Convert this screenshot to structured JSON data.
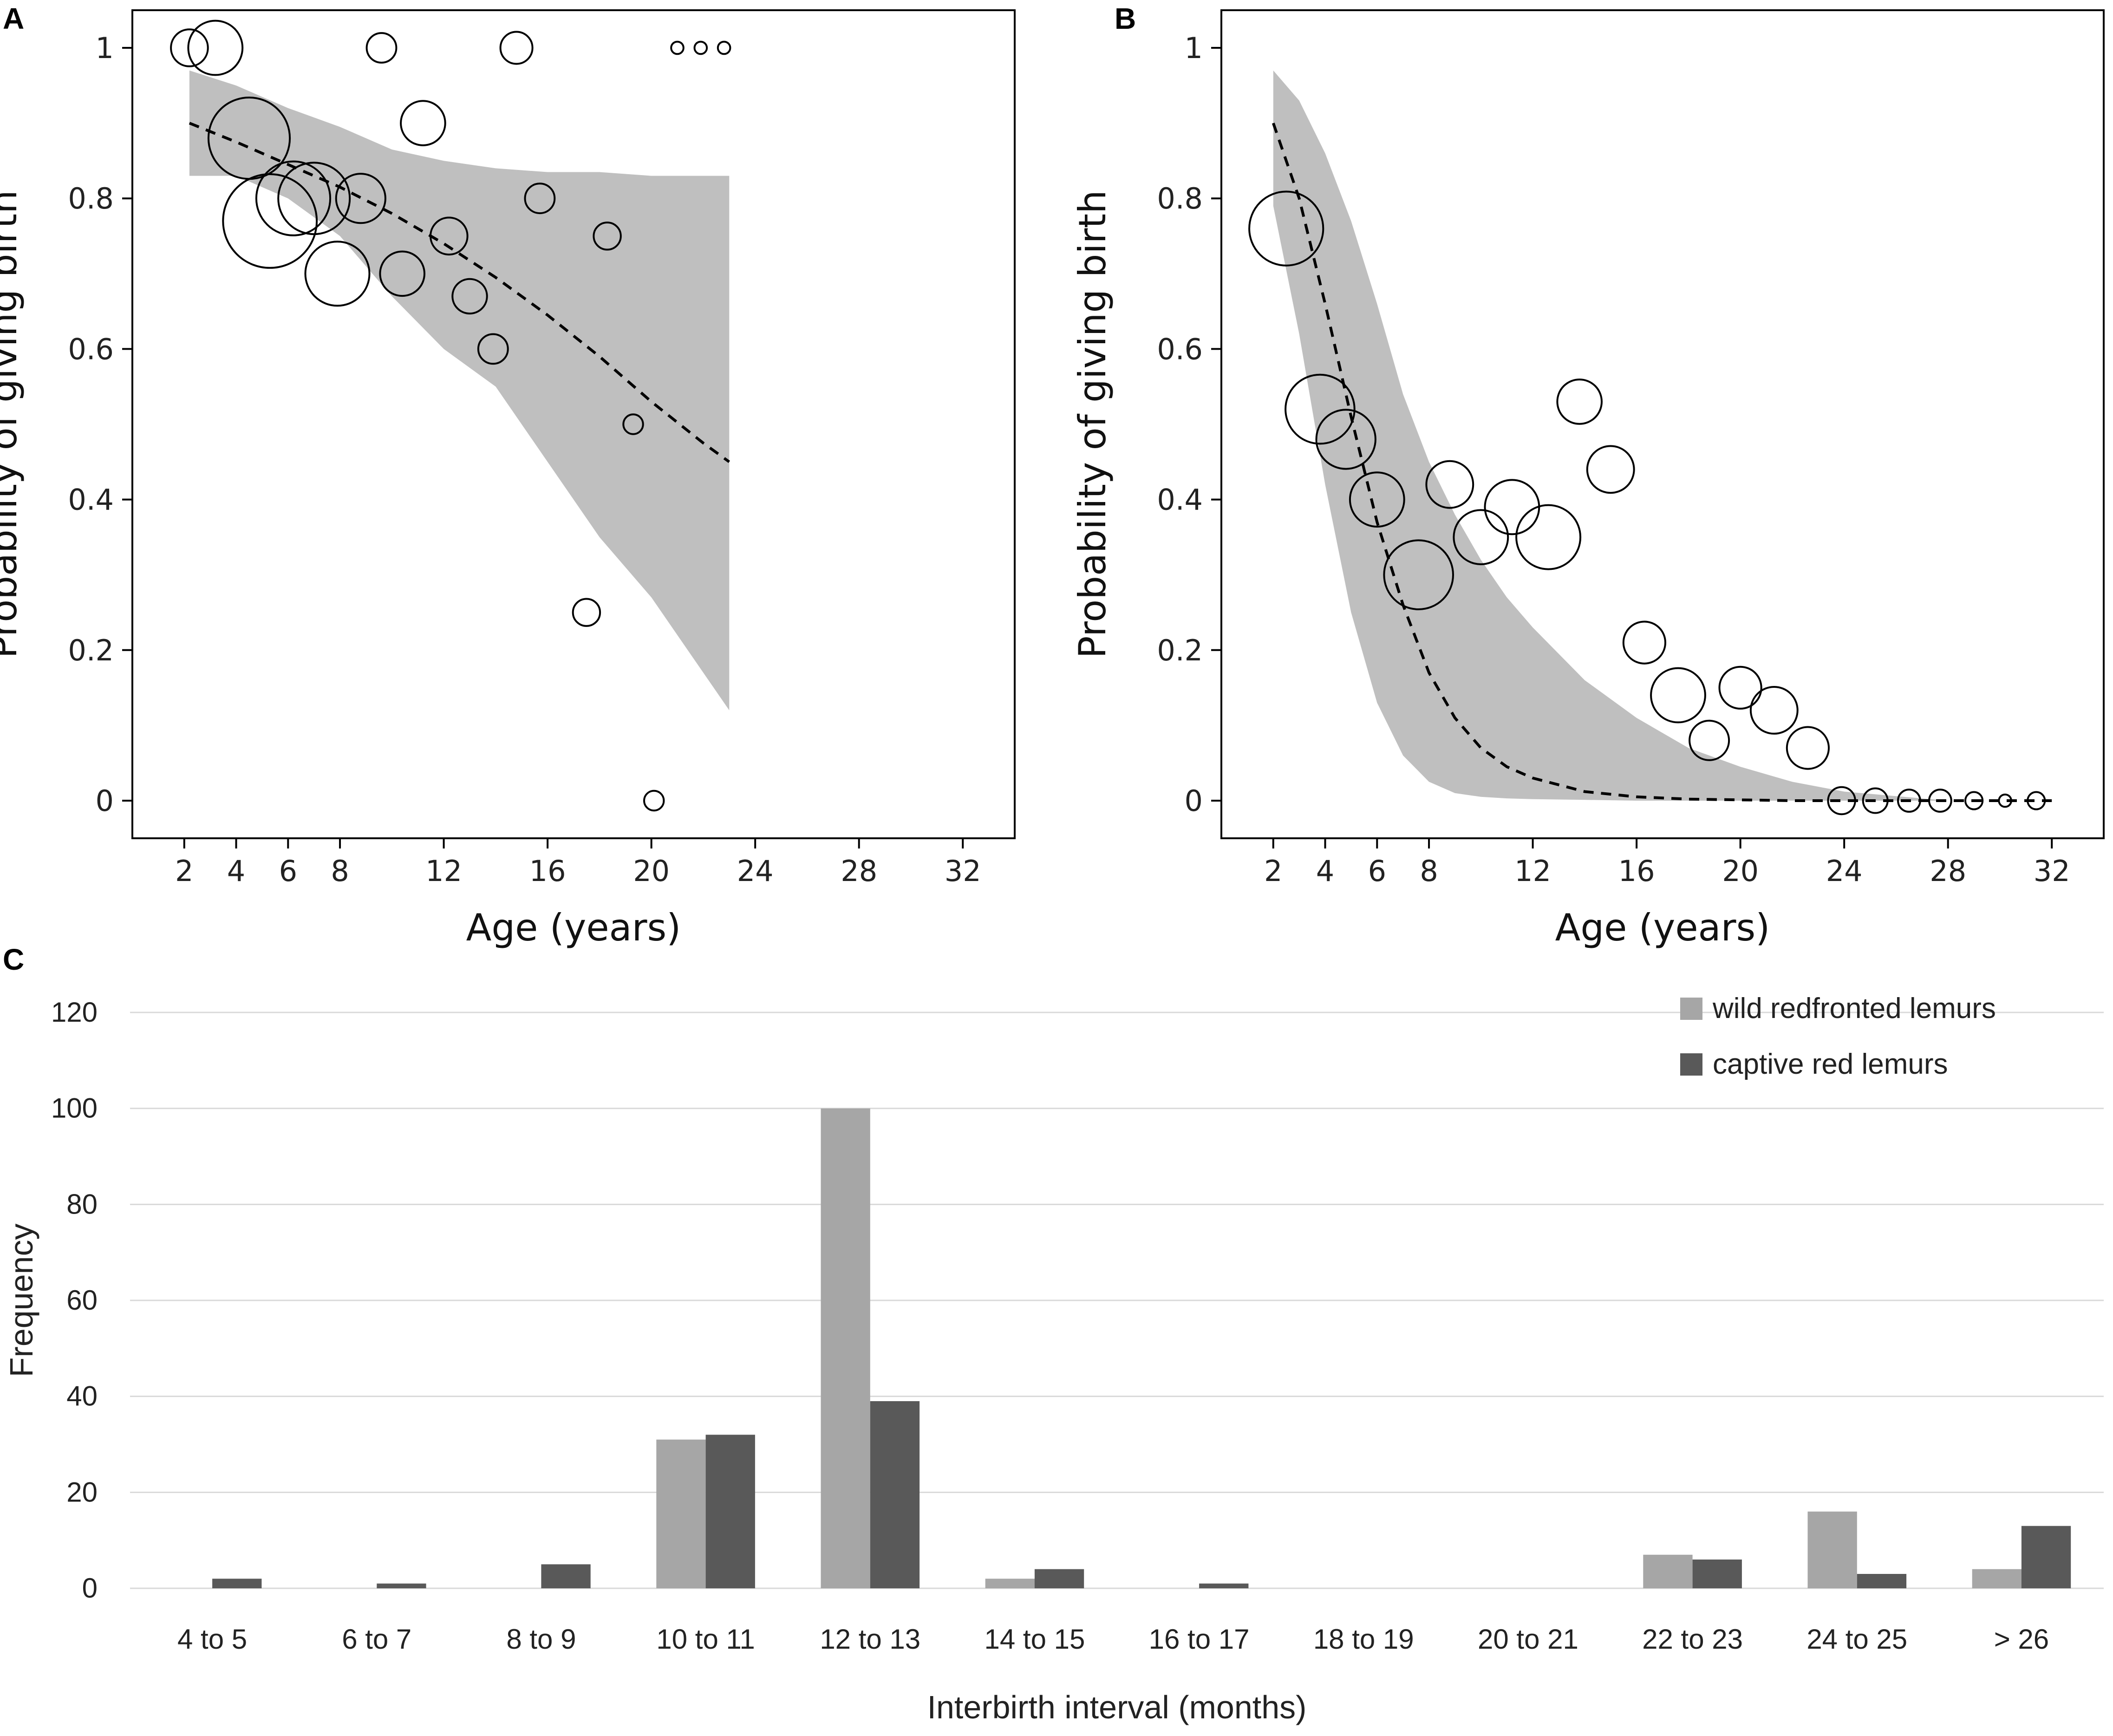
{
  "chart_data": [
    {
      "panel": "A",
      "type": "scatter",
      "xlabel": "Age (years)",
      "ylabel": "Probability of giving birth",
      "xlim": [
        0,
        34
      ],
      "ylim": [
        -0.05,
        1.05
      ],
      "xticks": [
        2,
        4,
        6,
        8,
        12,
        16,
        20,
        24,
        28,
        32
      ],
      "yticks": [
        0,
        0.2,
        0.4,
        0.6,
        0.8,
        1
      ],
      "ytick_labels": [
        "0",
        "0.2",
        "0.4",
        "0.6",
        "0.8",
        "1"
      ],
      "points": [
        {
          "x": 2.2,
          "y": 1.0,
          "r": 0.75
        },
        {
          "x": 3.2,
          "y": 1.0,
          "r": 1.1
        },
        {
          "x": 4.5,
          "y": 0.88,
          "r": 1.65
        },
        {
          "x": 5.3,
          "y": 0.77,
          "r": 1.9
        },
        {
          "x": 6.2,
          "y": 0.8,
          "r": 1.5
        },
        {
          "x": 7.0,
          "y": 0.8,
          "r": 1.45
        },
        {
          "x": 7.9,
          "y": 0.7,
          "r": 1.3
        },
        {
          "x": 8.8,
          "y": 0.8,
          "r": 1.0
        },
        {
          "x": 9.6,
          "y": 1.0,
          "r": 0.6
        },
        {
          "x": 10.4,
          "y": 0.7,
          "r": 0.9
        },
        {
          "x": 11.2,
          "y": 0.9,
          "r": 0.9
        },
        {
          "x": 12.2,
          "y": 0.75,
          "r": 0.75
        },
        {
          "x": 13.0,
          "y": 0.67,
          "r": 0.7
        },
        {
          "x": 13.9,
          "y": 0.6,
          "r": 0.6
        },
        {
          "x": 14.8,
          "y": 1.0,
          "r": 0.65
        },
        {
          "x": 15.7,
          "y": 0.8,
          "r": 0.6
        },
        {
          "x": 17.5,
          "y": 0.25,
          "r": 0.55
        },
        {
          "x": 18.3,
          "y": 0.75,
          "r": 0.55
        },
        {
          "x": 19.3,
          "y": 0.5,
          "r": 0.4
        },
        {
          "x": 20.1,
          "y": 0.0,
          "r": 0.4
        },
        {
          "x": 21.0,
          "y": 1.0,
          "r": 0.25
        },
        {
          "x": 21.9,
          "y": 1.0,
          "r": 0.25
        },
        {
          "x": 22.8,
          "y": 1.0,
          "r": 0.25
        }
      ],
      "fit_x": [
        2.2,
        4,
        6,
        8,
        10,
        12,
        14,
        16,
        18,
        20,
        22,
        23
      ],
      "fit_y": [
        0.9,
        0.875,
        0.845,
        0.815,
        0.78,
        0.74,
        0.695,
        0.645,
        0.59,
        0.53,
        0.475,
        0.45
      ],
      "ci_lower": [
        0.83,
        0.83,
        0.8,
        0.75,
        0.67,
        0.6,
        0.55,
        0.45,
        0.35,
        0.27,
        0.17,
        0.12
      ],
      "ci_upper": [
        0.97,
        0.95,
        0.92,
        0.895,
        0.865,
        0.85,
        0.84,
        0.835,
        0.835,
        0.83,
        0.83,
        0.83
      ]
    },
    {
      "panel": "B",
      "type": "scatter",
      "xlabel": "Age (years)",
      "ylabel": "Probability of giving birth",
      "xlim": [
        0,
        34
      ],
      "ylim": [
        -0.05,
        1.05
      ],
      "xticks": [
        2,
        4,
        6,
        8,
        12,
        16,
        20,
        24,
        28,
        32
      ],
      "yticks": [
        0,
        0.2,
        0.4,
        0.6,
        0.8,
        1
      ],
      "ytick_labels": [
        "0",
        "0.2",
        "0.4",
        "0.6",
        "0.8",
        "1"
      ],
      "points": [
        {
          "x": 2.5,
          "y": 0.76,
          "r": 1.5
        },
        {
          "x": 3.8,
          "y": 0.52,
          "r": 1.4
        },
        {
          "x": 4.8,
          "y": 0.48,
          "r": 1.2
        },
        {
          "x": 6.0,
          "y": 0.4,
          "r": 1.1
        },
        {
          "x": 7.6,
          "y": 0.3,
          "r": 1.4
        },
        {
          "x": 8.8,
          "y": 0.42,
          "r": 0.95
        },
        {
          "x": 10.0,
          "y": 0.35,
          "r": 1.1
        },
        {
          "x": 11.2,
          "y": 0.39,
          "r": 1.1
        },
        {
          "x": 12.6,
          "y": 0.35,
          "r": 1.3
        },
        {
          "x": 13.8,
          "y": 0.53,
          "r": 0.9
        },
        {
          "x": 15.0,
          "y": 0.44,
          "r": 0.95
        },
        {
          "x": 16.3,
          "y": 0.21,
          "r": 0.85
        },
        {
          "x": 17.6,
          "y": 0.14,
          "r": 1.1
        },
        {
          "x": 18.8,
          "y": 0.08,
          "r": 0.8
        },
        {
          "x": 20.0,
          "y": 0.15,
          "r": 0.85
        },
        {
          "x": 21.3,
          "y": 0.12,
          "r": 0.95
        },
        {
          "x": 22.6,
          "y": 0.07,
          "r": 0.85
        },
        {
          "x": 23.9,
          "y": 0.0,
          "r": 0.55
        },
        {
          "x": 25.2,
          "y": 0.0,
          "r": 0.5
        },
        {
          "x": 26.5,
          "y": 0.0,
          "r": 0.45
        },
        {
          "x": 27.7,
          "y": 0.0,
          "r": 0.45
        },
        {
          "x": 29.0,
          "y": 0.0,
          "r": 0.35
        },
        {
          "x": 30.2,
          "y": 0.0,
          "r": 0.25
        },
        {
          "x": 31.4,
          "y": 0.0,
          "r": 0.35
        }
      ],
      "fit_x": [
        2,
        3,
        4,
        5,
        6,
        7,
        8,
        9,
        10,
        11,
        12,
        14,
        16,
        18,
        20,
        22,
        24,
        28,
        32
      ],
      "fit_y": [
        0.9,
        0.8,
        0.66,
        0.51,
        0.37,
        0.26,
        0.17,
        0.11,
        0.07,
        0.045,
        0.03,
        0.012,
        0.005,
        0.002,
        0.001,
        0.0,
        0.0,
        0.0,
        0.0
      ],
      "ci_lower": [
        0.79,
        0.62,
        0.42,
        0.25,
        0.13,
        0.06,
        0.025,
        0.01,
        0.005,
        0.003,
        0.002,
        0.001,
        0.0,
        0.0,
        0.0,
        0.0,
        0.0,
        0.0
      ],
      "ci_upper": [
        0.97,
        0.93,
        0.86,
        0.77,
        0.66,
        0.54,
        0.45,
        0.38,
        0.32,
        0.27,
        0.23,
        0.16,
        0.11,
        0.07,
        0.045,
        0.025,
        0.012
      ],
      "ci_x_lower": [
        2,
        3,
        4,
        5,
        6,
        7,
        8,
        9,
        10,
        11,
        12,
        14,
        16,
        18,
        20,
        22,
        24,
        28
      ],
      "ci_x_upper": [
        2,
        3,
        4,
        5,
        6,
        7,
        8,
        9,
        10,
        11,
        12,
        14,
        16,
        18,
        20,
        22,
        24
      ]
    },
    {
      "panel": "C",
      "type": "bar",
      "xlabel": "Interbirth interval (months)",
      "ylabel": "Frequency",
      "ylim": [
        0,
        120
      ],
      "yticks": [
        0,
        20,
        40,
        60,
        80,
        100,
        120
      ],
      "categories": [
        "4 to 5",
        "6 to 7",
        "8 to 9",
        "10 to 11",
        "12 to 13",
        "14 to 15",
        "16 to 17",
        "18 to 19",
        "20 to 21",
        "22 to 23",
        "24 to 25",
        "> 26"
      ],
      "series": [
        {
          "name": "wild redfronted lemurs",
          "color": "#a6a6a6",
          "values": [
            0,
            0,
            0,
            31,
            100,
            2,
            0,
            0,
            0,
            7,
            16,
            4
          ]
        },
        {
          "name": "captive red lemurs",
          "color": "#595959",
          "values": [
            2,
            1,
            5,
            32,
            39,
            4,
            1,
            0,
            0,
            6,
            3,
            13
          ]
        }
      ],
      "legend_position": "top-right"
    }
  ],
  "panel_labels": [
    "A",
    "B",
    "C"
  ],
  "colors": {
    "ci_band": "#bfbfbf",
    "axes": "#000000",
    "gridline": "#d9d9d9",
    "wild": "#a6a6a6",
    "captive": "#595959"
  }
}
